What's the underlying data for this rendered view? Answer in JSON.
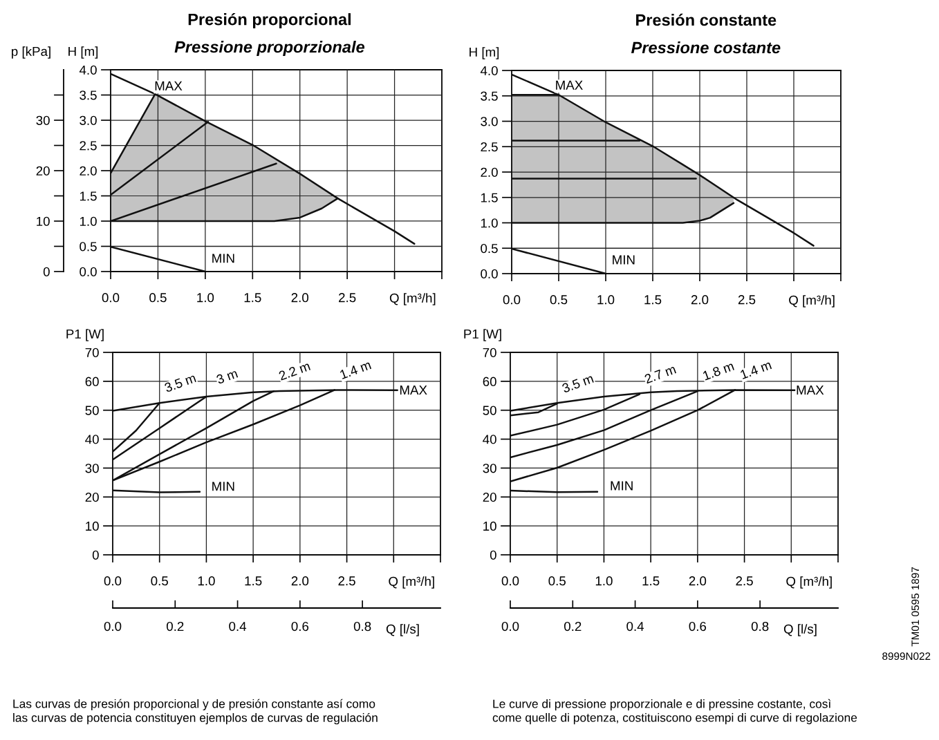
{
  "chart_data": [
    {
      "type": "line",
      "title": "Presión proporcional",
      "subtitle": "Pressione proporzionale",
      "xlabel": "Q [m³/h]",
      "ylabel": "H [m]",
      "y2label": "p [kPa]",
      "xlim": [
        0,
        3.5
      ],
      "xticks": [
        {
          "value": 0,
          "label": "0.0"
        },
        0.5,
        {
          "value": 1,
          "label": "1.0"
        },
        1.5,
        {
          "value": 2,
          "label": "2.0"
        },
        2.5,
        {
          "value": 3,
          "label": null
        },
        {
          "value": 3.5,
          "label": null
        }
      ],
      "ylim": [
        0,
        4
      ],
      "yticks": [
        {
          "value": 0,
          "label": "0.0"
        },
        0.5,
        {
          "value": 1,
          "label": "1.0"
        },
        1.5,
        {
          "value": 2,
          "label": "2.0"
        },
        2.5,
        {
          "value": 3,
          "label": "3.0"
        },
        3.5,
        {
          "value": 4,
          "label": "4.0"
        }
      ],
      "y2lim": [
        0,
        40
      ],
      "y2ticks": [
        0,
        {
          "value": 5,
          "label": null
        },
        10,
        {
          "value": 15,
          "label": null
        },
        20,
        {
          "value": 25,
          "label": null
        },
        30,
        {
          "value": 35,
          "label": null
        }
      ],
      "grid": true,
      "series": [
        {
          "color": "#111111",
          "x": [
            0,
            0.47,
            1.0,
            1.5,
            1.73,
            2.0,
            2.23,
            2.4
          ],
          "values": [
            1.0,
            1.0,
            1.0,
            1.0,
            1.0,
            1.07,
            1.25,
            1.45
          ],
          "lower": [
            1.0,
            1.0,
            1.0,
            1.0,
            1.0,
            1.07,
            1.25,
            1.45
          ],
          "upper": [
            1.95,
            3.52,
            2.98,
            2.51,
            2.25,
            1.94,
            1.66,
            1.45
          ]
        },
        {
          "color": "#111111",
          "x": [
            0,
            0.47
          ],
          "values": [
            1.95,
            3.52
          ]
        },
        {
          "color": "#111111",
          "x": [
            0,
            0.47,
            1.0,
            1.5,
            2.0,
            2.4,
            3.0,
            3.21
          ],
          "values": [
            3.92,
            3.52,
            2.98,
            2.51,
            1.94,
            1.45,
            0.8,
            0.55
          ]
        },
        {
          "color": "#111111",
          "x": [
            0,
            1.0
          ],
          "values": [
            0.49,
            0.0
          ]
        },
        {
          "color": "#111111",
          "x": [
            0,
            1.03
          ],
          "values": [
            1.52,
            2.97
          ]
        },
        {
          "color": "#111111",
          "x": [
            0,
            1.75
          ],
          "values": [
            1.0,
            2.14
          ]
        }
      ],
      "annotations": [
        {
          "text": "MAX",
          "x": 0.61,
          "y": 3.66
        },
        {
          "text": "MIN",
          "x": 1.19,
          "y": 0.24
        }
      ]
    },
    {
      "type": "line",
      "title": "Presión constante",
      "subtitle": "Pressione costante",
      "xlabel": "Q [m³/h]",
      "ylabel": "H [m]",
      "xlim": [
        0,
        3.5
      ],
      "xticks": [
        {
          "value": 0,
          "label": "0.0"
        },
        0.5,
        {
          "value": 1,
          "label": "1.0"
        },
        1.5,
        {
          "value": 2,
          "label": "2.0"
        },
        2.5,
        {
          "value": 3,
          "label": null
        },
        {
          "value": 3.5,
          "label": null
        }
      ],
      "ylim": [
        0,
        4
      ],
      "yticks": [
        {
          "value": 0,
          "label": "0.0"
        },
        0.5,
        {
          "value": 1,
          "label": "1.0"
        },
        1.5,
        {
          "value": 2,
          "label": "2.0"
        },
        2.5,
        {
          "value": 3,
          "label": "3.0"
        },
        3.5,
        {
          "value": 4,
          "label": "4.0"
        }
      ],
      "grid": true,
      "series": [
        {
          "color": "#111111",
          "x": [
            0,
            0.5,
            1.0,
            1.5,
            1.82,
            2.0,
            2.11,
            2.36
          ],
          "values": [
            1.0,
            1.0,
            1.0,
            1.0,
            1.0,
            1.04,
            1.1,
            1.39
          ],
          "lower": [
            1.0,
            1.0,
            1.0,
            1.0,
            1.0,
            1.04,
            1.1,
            1.39
          ],
          "upper": [
            3.52,
            3.52,
            2.98,
            2.51,
            2.17,
            1.94,
            1.82,
            1.5
          ]
        },
        {
          "color": "#111111",
          "x": [
            0,
            0.5
          ],
          "values": [
            3.52,
            3.52
          ]
        },
        {
          "color": "#111111",
          "x": [
            0,
            0.5,
            1.0,
            1.5,
            2.0,
            2.4,
            3.0,
            3.21
          ],
          "values": [
            3.92,
            3.52,
            2.98,
            2.51,
            1.94,
            1.45,
            0.8,
            0.55
          ]
        },
        {
          "color": "#111111",
          "x": [
            0,
            1.0
          ],
          "values": [
            0.49,
            0.0
          ]
        },
        {
          "color": "#111111",
          "x": [
            0,
            1.36
          ],
          "values": [
            2.62,
            2.62
          ]
        },
        {
          "color": "#111111",
          "x": [
            0,
            1.96
          ],
          "values": [
            1.87,
            1.87
          ]
        }
      ],
      "annotations": [
        {
          "text": "MAX",
          "x": 0.61,
          "y": 3.69
        },
        {
          "text": "MIN",
          "x": 1.19,
          "y": 0.25
        }
      ]
    },
    {
      "type": "line",
      "xlabel": "Q [m³/h]",
      "ylabel": "P1 [W]",
      "x2label": "Q [l/s]",
      "xlim": [
        0,
        3.5
      ],
      "xticks": [
        {
          "value": 0,
          "label": "0.0"
        },
        0.5,
        {
          "value": 1,
          "label": "1.0"
        },
        1.5,
        {
          "value": 2,
          "label": "2.0"
        },
        2.5,
        {
          "value": 3,
          "label": null
        },
        {
          "value": 3.5,
          "label": null
        }
      ],
      "ylim": [
        0,
        70
      ],
      "yticks": [
        0,
        10,
        20,
        30,
        40,
        50,
        60,
        70
      ],
      "x2lim": [
        0,
        1.05
      ],
      "x2ticks": [
        {
          "value": 0,
          "label": "0.0"
        },
        0.2,
        0.4,
        0.6,
        0.8
      ],
      "grid": true,
      "series": [
        {
          "color": "#111111",
          "x": [
            0,
            0.5,
            1.0,
            1.5,
            1.78,
            2.4,
            3.0,
            3.04
          ],
          "values": [
            49.8,
            52.5,
            54.7,
            56.2,
            56.6,
            57.0,
            56.9,
            56.9
          ]
        },
        {
          "name": "3.5 m",
          "color": "#111111",
          "x": [
            0,
            0.25,
            0.5
          ],
          "values": [
            35.7,
            43,
            52.5
          ]
        },
        {
          "name": "3 m",
          "color": "#111111",
          "x": [
            0,
            0.5,
            1.0
          ],
          "values": [
            32.9,
            43.8,
            54.7
          ]
        },
        {
          "name": "2.2 m",
          "color": "#111111",
          "x": [
            0,
            0.5,
            1.0,
            1.5,
            1.72
          ],
          "values": [
            25.7,
            34.8,
            43.8,
            53.2,
            56.6
          ]
        },
        {
          "name": "1.4 m",
          "color": "#111111",
          "x": [
            0,
            0.5,
            1.0,
            1.5,
            2.0,
            2.37
          ],
          "values": [
            25.7,
            32.2,
            38.9,
            45.1,
            51.7,
            57.0
          ]
        },
        {
          "color": "#111111",
          "x": [
            0,
            0.5,
            0.93
          ],
          "values": [
            22.3,
            21.6,
            21.8
          ]
        }
      ],
      "annotations": [
        {
          "text": "MAX",
          "x": 3.21,
          "y": 56.6
        },
        {
          "text": "MIN",
          "x": 1.18,
          "y": 23.3
        }
      ]
    },
    {
      "type": "line",
      "xlabel": "Q [m³/h]",
      "ylabel": "P1 [W]",
      "x2label": "Q [l/s]",
      "xlim": [
        0,
        3.5
      ],
      "xticks": [
        {
          "value": 0,
          "label": "0.0"
        },
        0.5,
        {
          "value": 1,
          "label": "1.0"
        },
        1.5,
        {
          "value": 2,
          "label": "2.0"
        },
        2.5,
        {
          "value": 3,
          "label": null
        },
        {
          "value": 3.5,
          "label": null
        }
      ],
      "ylim": [
        0,
        70
      ],
      "yticks": [
        0,
        10,
        20,
        30,
        40,
        50,
        60,
        70
      ],
      "x2lim": [
        0,
        1.05
      ],
      "x2ticks": [
        {
          "value": 0,
          "label": "0.0"
        },
        0.2,
        0.4,
        0.6,
        0.8
      ],
      "grid": true,
      "series": [
        {
          "color": "#111111",
          "x": [
            0,
            0.5,
            1.0,
            1.5,
            1.78,
            2.4,
            3.0,
            3.04
          ],
          "values": [
            49.8,
            52.5,
            54.7,
            56.2,
            56.6,
            57.0,
            56.9,
            56.9
          ]
        },
        {
          "name": "3.5 m",
          "color": "#111111",
          "x": [
            0,
            0.3,
            0.5
          ],
          "values": [
            48.2,
            49.3,
            52.3
          ]
        },
        {
          "name": "2.7 m",
          "color": "#111111",
          "x": [
            0,
            0.5,
            1.0,
            1.38
          ],
          "values": [
            41.2,
            45,
            50.2,
            55.5
          ]
        },
        {
          "name": "1.8 m",
          "color": "#111111",
          "x": [
            0,
            0.5,
            1.0,
            1.5,
            2.0
          ],
          "values": [
            33.7,
            38,
            43.1,
            50,
            56.6
          ]
        },
        {
          "name": "1.4 m",
          "color": "#111111",
          "x": [
            0,
            0.5,
            1.0,
            1.5,
            2.0,
            2.4
          ],
          "values": [
            25.4,
            30.1,
            36.3,
            42.9,
            50,
            57
          ]
        },
        {
          "color": "#111111",
          "x": [
            0,
            0.5,
            0.93
          ],
          "values": [
            22.2,
            21.7,
            21.8
          ]
        }
      ],
      "annotations": [
        {
          "text": "MAX",
          "x": 3.2,
          "y": 56.6
        },
        {
          "text": "MIN",
          "x": 1.19,
          "y": 23.5
        }
      ]
    },
    {
      "type": "other",
      "annotations": [
        "TM01 0595 1897",
        "8999N022",
        "Las curvas de presión proporcional y de presión constante así como\nlas curvas de potencia constituyen ejemplos de curvas de regulación",
        "Le curve di pressione proporzionale e di pressine costante, così\ncome quelle di potenza, costituiscono esempi di curve di regolazione"
      ]
    }
  ]
}
